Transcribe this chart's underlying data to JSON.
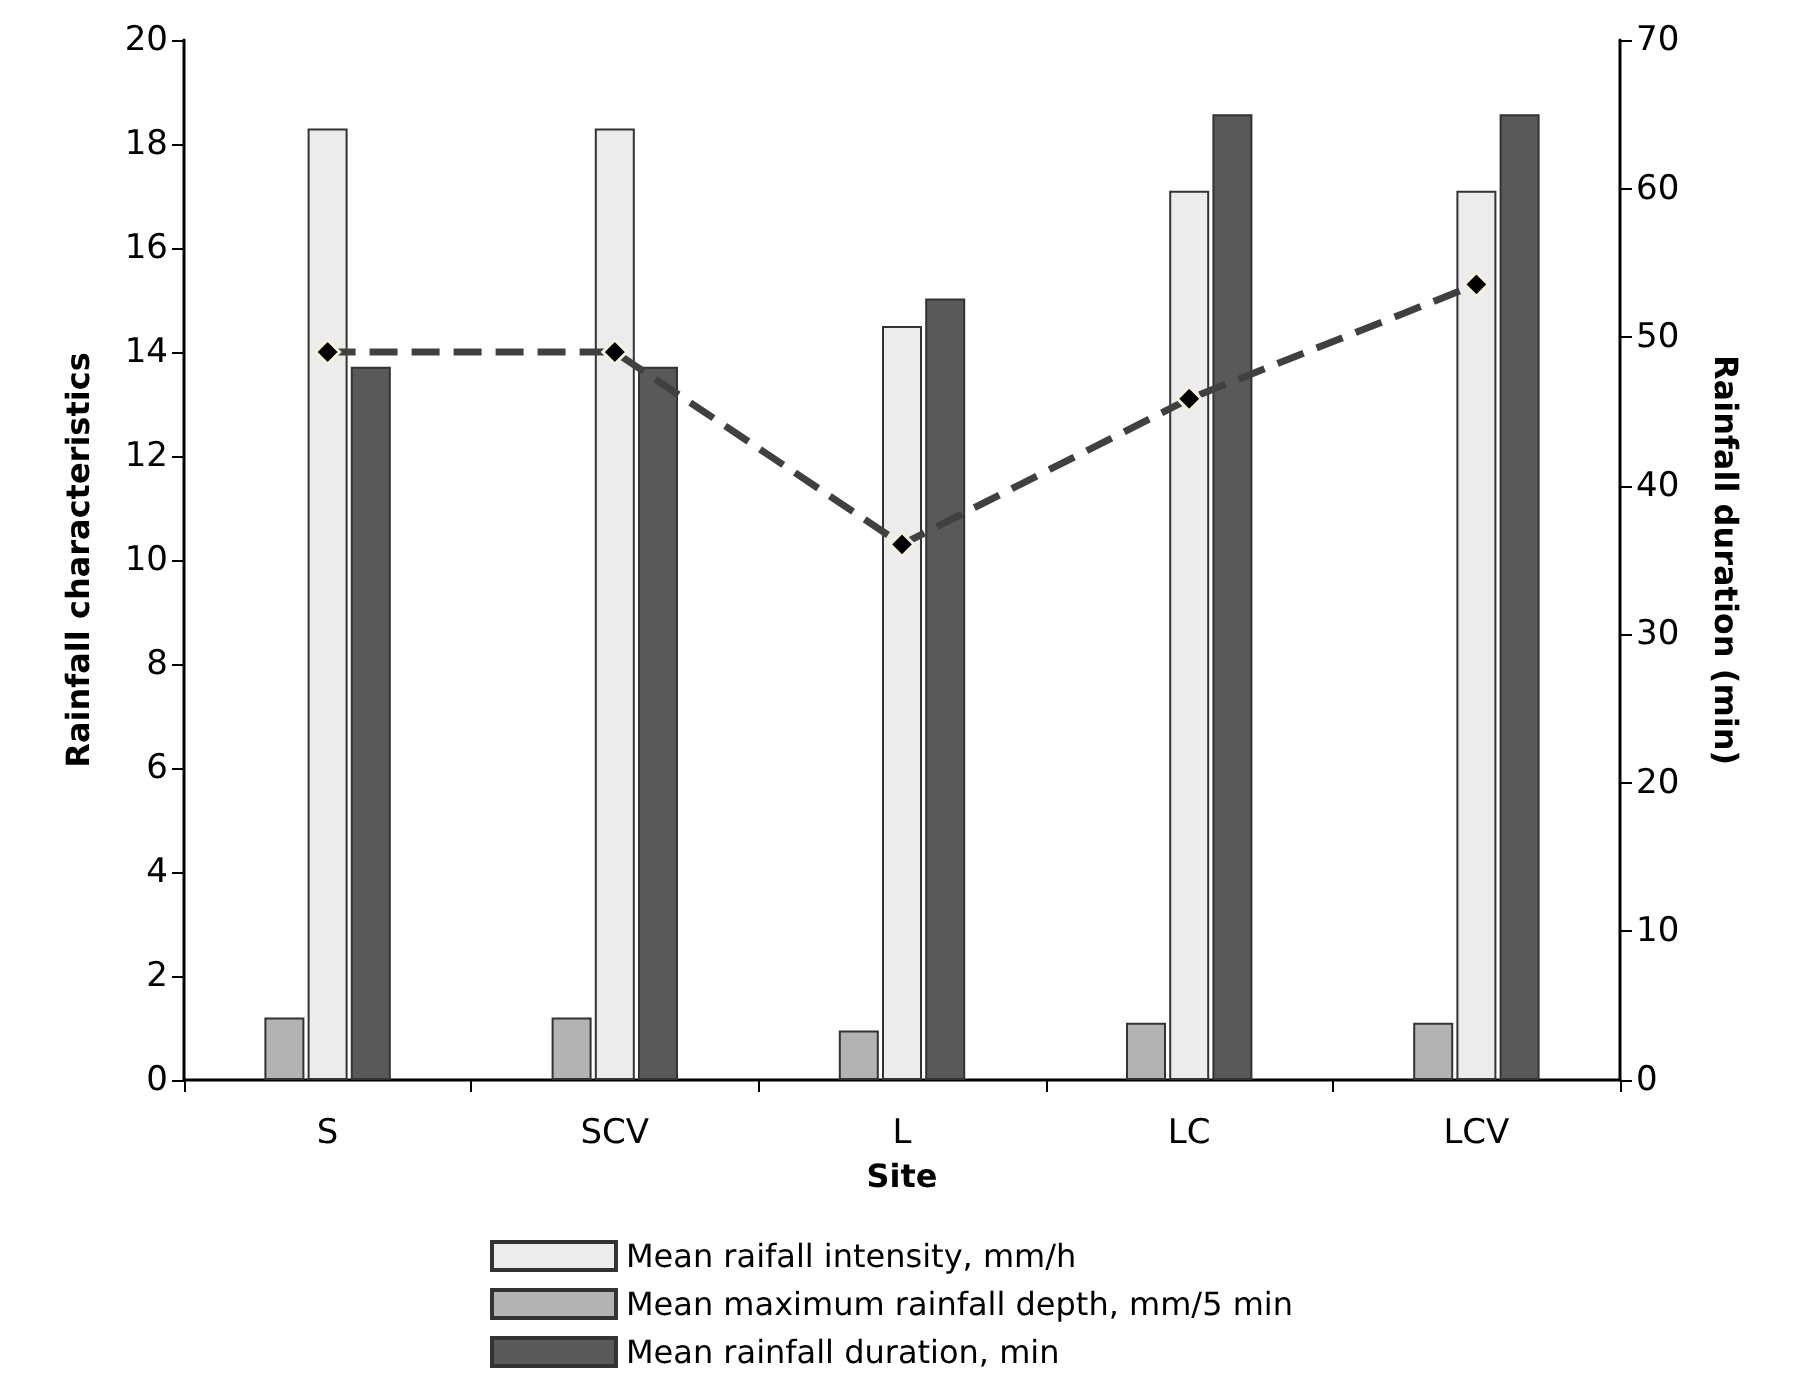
{
  "chart_data": {
    "type": "bar",
    "xlabel": "Site",
    "ylabel": "Rainfall characteristics",
    "y2label": "Rainfall duration (min)",
    "categories": [
      "S",
      "SCV",
      "L",
      "LC",
      "LCV"
    ],
    "series": [
      {
        "name": "Mean maximum rainfall depth, mm/5 min",
        "color": "#b3b3b3",
        "values": [
          1.2,
          1.2,
          0.95,
          1.1,
          1.1
        ]
      },
      {
        "name": "Mean raifall intensity, mm/h",
        "color": "#ececec",
        "values": [
          18.3,
          18.3,
          14.5,
          17.1,
          17.1
        ]
      },
      {
        "name": "Mean rainfall duration, min",
        "color": "#595959",
        "axis": "y2",
        "values": [
          48,
          48,
          52.6,
          65,
          65
        ]
      },
      {
        "type": "line",
        "color": "#404040",
        "marker": "diamond",
        "line_style": "dashed",
        "values": [
          14.0,
          14.0,
          10.3,
          13.1,
          15.3
        ]
      }
    ],
    "ylim": [
      0,
      20
    ],
    "yticks": [
      0,
      2,
      4,
      6,
      8,
      10,
      12,
      14,
      16,
      18,
      20
    ],
    "y2lim": [
      0,
      70
    ],
    "y2ticks": [
      0,
      10,
      20,
      30,
      40,
      50,
      60,
      70
    ],
    "grid": false,
    "legend": "bottom"
  }
}
